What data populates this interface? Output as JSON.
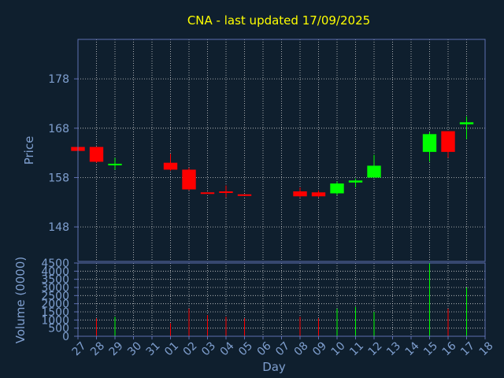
{
  "colors": {
    "background": "#0f1f2e",
    "frame": "#5e6fb0",
    "grid": "#d0d0d0",
    "title": "#ffff00",
    "axis_text": "#7f9fcf",
    "up": "#00ff00",
    "down": "#ff0000",
    "neutral": "#ff0000"
  },
  "chart_data": [
    {
      "type": "candlestick",
      "title": "CNA - last updated 17/09/2025",
      "ylabel": "Price",
      "ylim": [
        141,
        186
      ],
      "yticks": [
        148,
        158,
        168,
        178
      ],
      "grid": true,
      "x_ticks": [
        "27",
        "28",
        "29",
        "30",
        "31",
        "01",
        "02",
        "03",
        "04",
        "05",
        "06",
        "07",
        "08",
        "09",
        "10",
        "11",
        "12",
        "13",
        "14",
        "15",
        "16",
        "17",
        "18"
      ],
      "x_range": [
        0,
        22
      ],
      "candles": [
        {
          "x": 0,
          "open": 164.2,
          "close": 163.4,
          "high": 164.2,
          "low": 163.4
        },
        {
          "x": 1,
          "open": 164.2,
          "close": 161.2,
          "high": 164.2,
          "low": 161.0
        },
        {
          "x": 2,
          "open": 160.6,
          "close": 160.8,
          "high": 162.0,
          "low": 159.6
        },
        {
          "x": 5,
          "open": 161.0,
          "close": 159.6,
          "high": 162.8,
          "low": 159.4
        },
        {
          "x": 6,
          "open": 159.6,
          "close": 155.6,
          "high": 160.0,
          "low": 155.4
        },
        {
          "x": 7,
          "open": 155.0,
          "close": 154.8,
          "high": 155.0,
          "low": 154.8
        },
        {
          "x": 8,
          "open": 155.2,
          "close": 155.0,
          "high": 156.4,
          "low": 154.0
        },
        {
          "x": 9,
          "open": 154.6,
          "close": 154.4,
          "high": 154.6,
          "low": 154.4
        },
        {
          "x": 12,
          "open": 155.2,
          "close": 154.2,
          "high": 156.0,
          "low": 154.0
        },
        {
          "x": 13,
          "open": 155.0,
          "close": 154.2,
          "high": 155.4,
          "low": 154.0
        },
        {
          "x": 14,
          "open": 154.8,
          "close": 156.8,
          "high": 157.2,
          "low": 154.4
        },
        {
          "x": 15,
          "open": 157.0,
          "close": 157.4,
          "high": 157.8,
          "low": 156.0
        },
        {
          "x": 16,
          "open": 158.0,
          "close": 160.4,
          "high": 162.6,
          "low": 158.0
        },
        {
          "x": 19,
          "open": 163.2,
          "close": 166.8,
          "high": 167.2,
          "low": 161.2
        },
        {
          "x": 20,
          "open": 167.4,
          "close": 163.2,
          "high": 167.4,
          "low": 162.0
        },
        {
          "x": 21,
          "open": 168.8,
          "close": 169.2,
          "high": 170.4,
          "low": 165.8
        }
      ]
    },
    {
      "type": "bar",
      "ylabel": "Volume (0000)",
      "xlabel": "Day",
      "ylim": [
        0,
        4500
      ],
      "yticks": [
        0,
        500,
        1000,
        1500,
        2000,
        2500,
        3000,
        3500,
        4000,
        4500
      ],
      "grid": true,
      "x_ticks": [
        "27",
        "28",
        "29",
        "30",
        "31",
        "01",
        "02",
        "03",
        "04",
        "05",
        "06",
        "07",
        "08",
        "09",
        "10",
        "11",
        "12",
        "13",
        "14",
        "15",
        "16",
        "17",
        "18"
      ],
      "x_range": [
        0,
        22
      ],
      "bars": [
        {
          "x": 1,
          "value": 1100,
          "dir": "down"
        },
        {
          "x": 2,
          "value": 1200,
          "dir": "up"
        },
        {
          "x": 5,
          "value": 800,
          "dir": "down"
        },
        {
          "x": 6,
          "value": 1700,
          "dir": "down"
        },
        {
          "x": 7,
          "value": 1300,
          "dir": "down"
        },
        {
          "x": 8,
          "value": 1200,
          "dir": "down"
        },
        {
          "x": 9,
          "value": 1100,
          "dir": "down"
        },
        {
          "x": 12,
          "value": 1200,
          "dir": "down"
        },
        {
          "x": 13,
          "value": 1100,
          "dir": "down"
        },
        {
          "x": 14,
          "value": 1700,
          "dir": "up"
        },
        {
          "x": 15,
          "value": 1800,
          "dir": "up"
        },
        {
          "x": 16,
          "value": 1500,
          "dir": "up"
        },
        {
          "x": 19,
          "value": 4500,
          "dir": "up"
        },
        {
          "x": 20,
          "value": 1700,
          "dir": "down"
        },
        {
          "x": 21,
          "value": 3000,
          "dir": "up"
        }
      ]
    }
  ]
}
